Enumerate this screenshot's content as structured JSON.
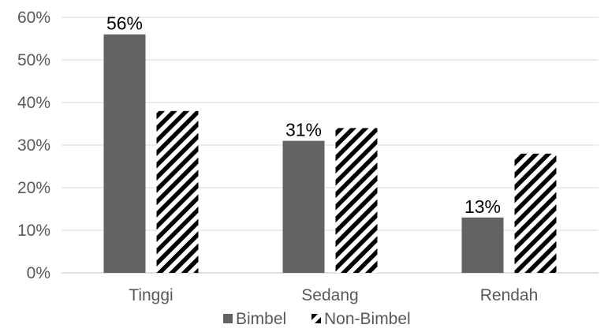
{
  "chart_data": {
    "type": "bar",
    "categories": [
      "Tinggi",
      "Sedang",
      "Rendah"
    ],
    "series": [
      {
        "name": "Bimbel",
        "values": [
          56,
          31,
          13
        ],
        "color": "#636363",
        "data_labels": [
          "56%",
          "31%",
          "13%"
        ]
      },
      {
        "name": "Non-Bimbel",
        "values": [
          38,
          34,
          28
        ],
        "color": "#000000",
        "fill": "diagonal-stripes"
      }
    ],
    "y_ticks": [
      "0%",
      "10%",
      "20%",
      "30%",
      "40%",
      "50%",
      "60%"
    ],
    "ylim": [
      0,
      60
    ],
    "grid": true,
    "legend": "bottom",
    "title": "",
    "xlabel": "",
    "ylabel": ""
  }
}
